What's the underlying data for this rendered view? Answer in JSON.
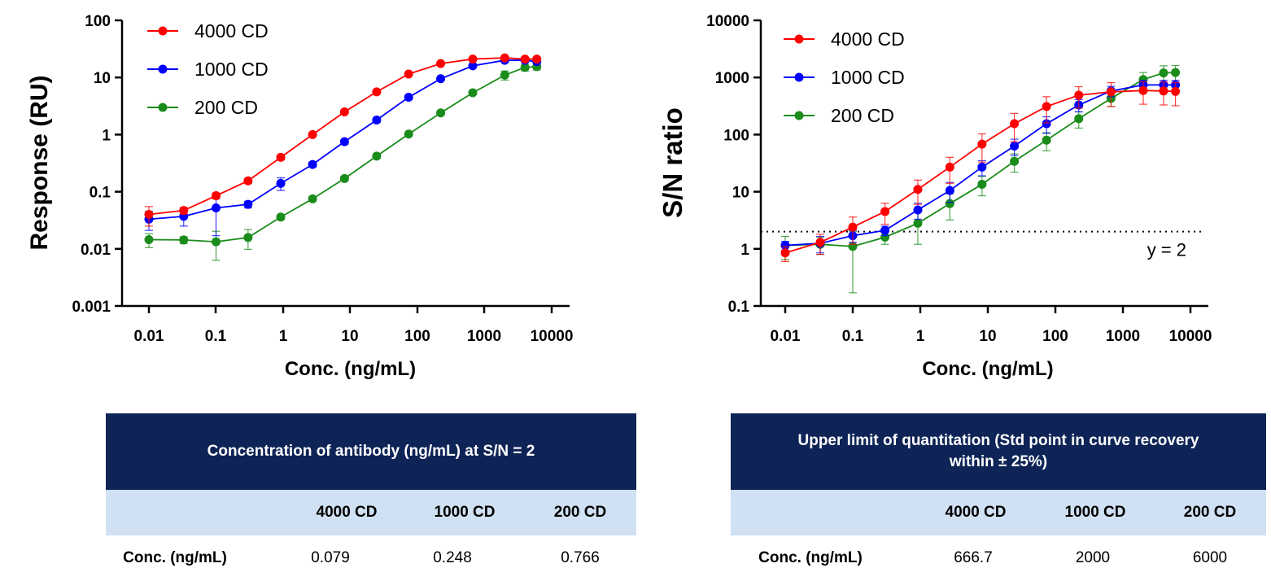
{
  "chart_data": [
    {
      "type": "line",
      "xlabel": "Conc. (ng/mL)",
      "ylabel": "Response (RU)",
      "xscale": "log",
      "yscale": "log",
      "xlim": [
        0.005,
        10000
      ],
      "ylim": [
        0.001,
        100
      ],
      "xticks": [
        "0.01",
        "0.1",
        "1",
        "10",
        "100",
        "1000",
        "10000"
      ],
      "yticks": [
        "0.001",
        "0.01",
        "0.1",
        "1",
        "10",
        "100"
      ],
      "legend": "top-left",
      "x": [
        0.01,
        0.033,
        0.1,
        0.3,
        0.92,
        2.74,
        8.2,
        24.7,
        74,
        222,
        667,
        2000,
        4000,
        6000
      ],
      "series": [
        {
          "name": "4000 CD",
          "color": "#ff0000",
          "values": [
            0.04,
            0.047,
            0.085,
            0.155,
            0.4,
            1.0,
            2.5,
            5.6,
            11.5,
            17.5,
            21,
            22,
            21,
            21
          ],
          "err": [
            0.015,
            0.006,
            0.01,
            0.015,
            0.04,
            0.08,
            0.15,
            0.3,
            0.6,
            0.8,
            1,
            1,
            1,
            1
          ]
        },
        {
          "name": "1000 CD",
          "color": "#0000ff",
          "values": [
            0.033,
            0.037,
            0.052,
            0.06,
            0.14,
            0.3,
            0.75,
            1.8,
            4.5,
            9.5,
            16,
            20,
            20,
            19
          ],
          "err": [
            0.012,
            0.012,
            0.035,
            0.008,
            0.035,
            0.03,
            0.07,
            0.15,
            0.4,
            0.7,
            1,
            1,
            1,
            1
          ]
        },
        {
          "name": "200 CD",
          "color": "#1a8c1a",
          "values": [
            0.0145,
            0.0143,
            0.0133,
            0.0158,
            0.036,
            0.075,
            0.17,
            0.42,
            1.02,
            2.4,
            5.4,
            11,
            15,
            15.5
          ],
          "err": [
            0.004,
            0.002,
            0.007,
            0.006,
            0.003,
            0.007,
            0.015,
            0.03,
            0.07,
            0.15,
            0.4,
            2,
            2,
            2
          ]
        }
      ]
    },
    {
      "type": "line",
      "xlabel": "Conc. (ng/mL)",
      "ylabel": "S/N ratio",
      "xscale": "log",
      "yscale": "log",
      "xlim": [
        0.005,
        10000
      ],
      "ylim": [
        0.1,
        10000
      ],
      "xticks": [
        "0.01",
        "0.1",
        "1",
        "10",
        "100",
        "1000",
        "10000"
      ],
      "yticks": [
        "0.1",
        "1",
        "10",
        "100",
        "1000",
        "10000"
      ],
      "legend": "top-left",
      "hline": {
        "y": 2,
        "label": "y = 2"
      },
      "x": [
        0.01,
        0.033,
        0.1,
        0.3,
        0.92,
        2.74,
        8.2,
        24.7,
        74,
        222,
        667,
        2000,
        4000,
        6000
      ],
      "series": [
        {
          "name": "4000 CD",
          "color": "#ff0000",
          "values": [
            0.85,
            1.3,
            2.4,
            4.5,
            11,
            27,
            68,
            155,
            310,
            490,
            560,
            590,
            580,
            570
          ],
          "err": [
            0.25,
            0.5,
            1.2,
            1.8,
            5,
            13,
            35,
            80,
            150,
            200,
            250,
            250,
            250,
            250
          ]
        },
        {
          "name": "1000 CD",
          "color": "#0000ff",
          "values": [
            1.15,
            1.25,
            1.7,
            2.1,
            4.8,
            10.5,
            27,
            63,
            155,
            330,
            580,
            740,
            740,
            740
          ],
          "err": [
            0.2,
            0.4,
            0.4,
            0.4,
            1.5,
            4,
            8,
            20,
            50,
            80,
            120,
            150,
            150,
            150
          ]
        },
        {
          "name": "200 CD",
          "color": "#1a8c1a",
          "values": [
            1.15,
            1.2,
            1.1,
            1.6,
            2.8,
            6.2,
            13.5,
            34,
            80,
            190,
            430,
            920,
            1200,
            1220
          ],
          "err": [
            0.5,
            0.4,
            0.93,
            0.4,
            1.6,
            3,
            5,
            12,
            28,
            60,
            120,
            300,
            400,
            400
          ]
        }
      ]
    }
  ],
  "tables": [
    {
      "title": "Concentration of antibody (ng/mL) at S/N = 2",
      "columns": [
        "4000 CD",
        "1000 CD",
        "200 CD"
      ],
      "row_label": "Conc. (ng/mL)",
      "values": [
        "0.079",
        "0.248",
        "0.766"
      ]
    },
    {
      "title": "Upper limit of quantitation (Std point in curve recovery within ± 25%)",
      "columns": [
        "4000 CD",
        "1000 CD",
        "200 CD"
      ],
      "row_label": "Conc. (ng/mL)",
      "values": [
        "666.7",
        "2000",
        "6000"
      ]
    }
  ]
}
